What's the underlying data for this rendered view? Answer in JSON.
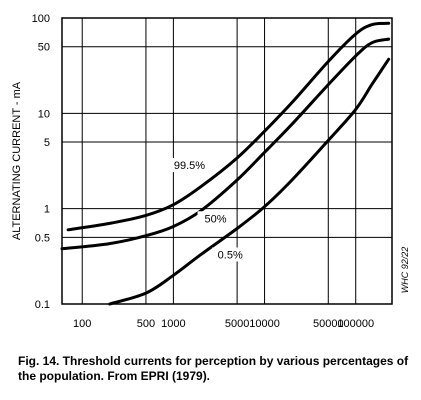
{
  "caption": "Fig. 14.  Threshold currents for perception by various percentages of the population.  From EPRI (1979).",
  "chart_data": {
    "type": "line",
    "title": "",
    "xlabel": "",
    "ylabel": "ALTERNATING CURRENT - mA",
    "x_scale": "log",
    "y_scale": "log",
    "xlim": [
      60,
      250000
    ],
    "ylim": [
      0.1,
      100
    ],
    "x_ticks": [
      100,
      500,
      1000,
      5000,
      10000,
      50000,
      100000
    ],
    "x_tick_labels": [
      "100",
      "500",
      "1000",
      "5000",
      "10000",
      "50000",
      "100000"
    ],
    "y_ticks": [
      0.1,
      0.5,
      1,
      5,
      10,
      50,
      100
    ],
    "y_tick_labels": [
      "0.1",
      "0.5",
      "1",
      "5",
      "10",
      "50",
      "100"
    ],
    "grid": true,
    "annotation": "WHC 92/22",
    "series": [
      {
        "name": "99.5%",
        "x": [
          70,
          200,
          500,
          1000,
          2000,
          5000,
          10000,
          20000,
          50000,
          100000,
          150000,
          230000
        ],
        "y": [
          0.6,
          0.7,
          0.85,
          1.1,
          1.7,
          3.4,
          6.5,
          13,
          35,
          68,
          85,
          88
        ]
      },
      {
        "name": "50%",
        "x": [
          60,
          200,
          500,
          1000,
          2000,
          5000,
          10000,
          20000,
          50000,
          100000,
          150000,
          230000
        ],
        "y": [
          0.38,
          0.43,
          0.52,
          0.65,
          0.95,
          2.0,
          3.9,
          7.7,
          20,
          40,
          55,
          60
        ]
      },
      {
        "name": "0.5%",
        "x": [
          200,
          500,
          1000,
          2000,
          5000,
          10000,
          20000,
          50000,
          100000,
          150000,
          230000
        ],
        "y": [
          0.1,
          0.13,
          0.2,
          0.33,
          0.62,
          1.05,
          2.0,
          5.2,
          11,
          20,
          37
        ]
      }
    ],
    "series_labels": [
      {
        "text": "99.5%",
        "x": 1500,
        "y": 2.6
      },
      {
        "text": "50%",
        "x": 2900,
        "y": 0.72
      },
      {
        "text": "0.5%",
        "x": 4200,
        "y": 0.3
      }
    ]
  }
}
